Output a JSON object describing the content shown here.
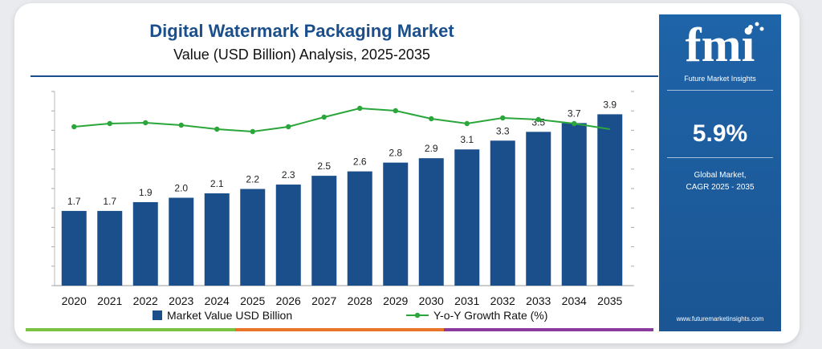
{
  "header": {
    "title": "Digital Watermark Packaging Market",
    "subtitle": "Value (USD Billion) Analysis, 2025-2035"
  },
  "sidebar": {
    "logo_text": "fmi",
    "logo_subtitle": "Future Market Insights",
    "cagr_value": "5.9%",
    "cagr_label_line1": "Global Market,",
    "cagr_label_line2": "CAGR 2025 - 2035",
    "website": "www.futuremarketinsights.com"
  },
  "colors": {
    "bar": "#1b4f8c",
    "line": "#2aa63a",
    "title": "#1b4f8c",
    "sidebar_bg": "#1d5c9c",
    "stripe_green": "#7cc242",
    "stripe_orange": "#e8742a",
    "stripe_purple": "#8b3a9e"
  },
  "chart_data": {
    "type": "bar",
    "categories": [
      "2020",
      "2021",
      "2022",
      "2023",
      "2024",
      "2025",
      "2026",
      "2027",
      "2028",
      "2029",
      "2030",
      "2031",
      "2032",
      "2033",
      "2034",
      "2035"
    ],
    "series": [
      {
        "name": "Market Value USD Billion",
        "type": "bar",
        "values": [
          1.7,
          1.7,
          1.9,
          2.0,
          2.1,
          2.2,
          2.3,
          2.5,
          2.6,
          2.8,
          2.9,
          3.1,
          3.3,
          3.5,
          3.7,
          3.9
        ],
        "labels": [
          "1.7",
          "1.7",
          "1.9",
          "2.0",
          "2.1",
          "2.2",
          "2.3",
          "2.5",
          "2.6",
          "2.8",
          "2.9",
          "3.1",
          "3.3",
          "3.5",
          "3.7",
          "3.9"
        ]
      },
      {
        "name": "Y-o-Y Growth Rate (%)",
        "type": "line",
        "values": [
          5.8,
          6.2,
          6.3,
          6.0,
          5.5,
          5.2,
          5.8,
          7.0,
          8.1,
          7.8,
          6.8,
          6.2,
          6.9,
          6.7,
          6.2,
          5.5
        ]
      }
    ],
    "ylim": [
      0,
      4.2
    ],
    "line_ylim": [
      0,
      10
    ],
    "grid": false,
    "legend_position": "bottom"
  }
}
